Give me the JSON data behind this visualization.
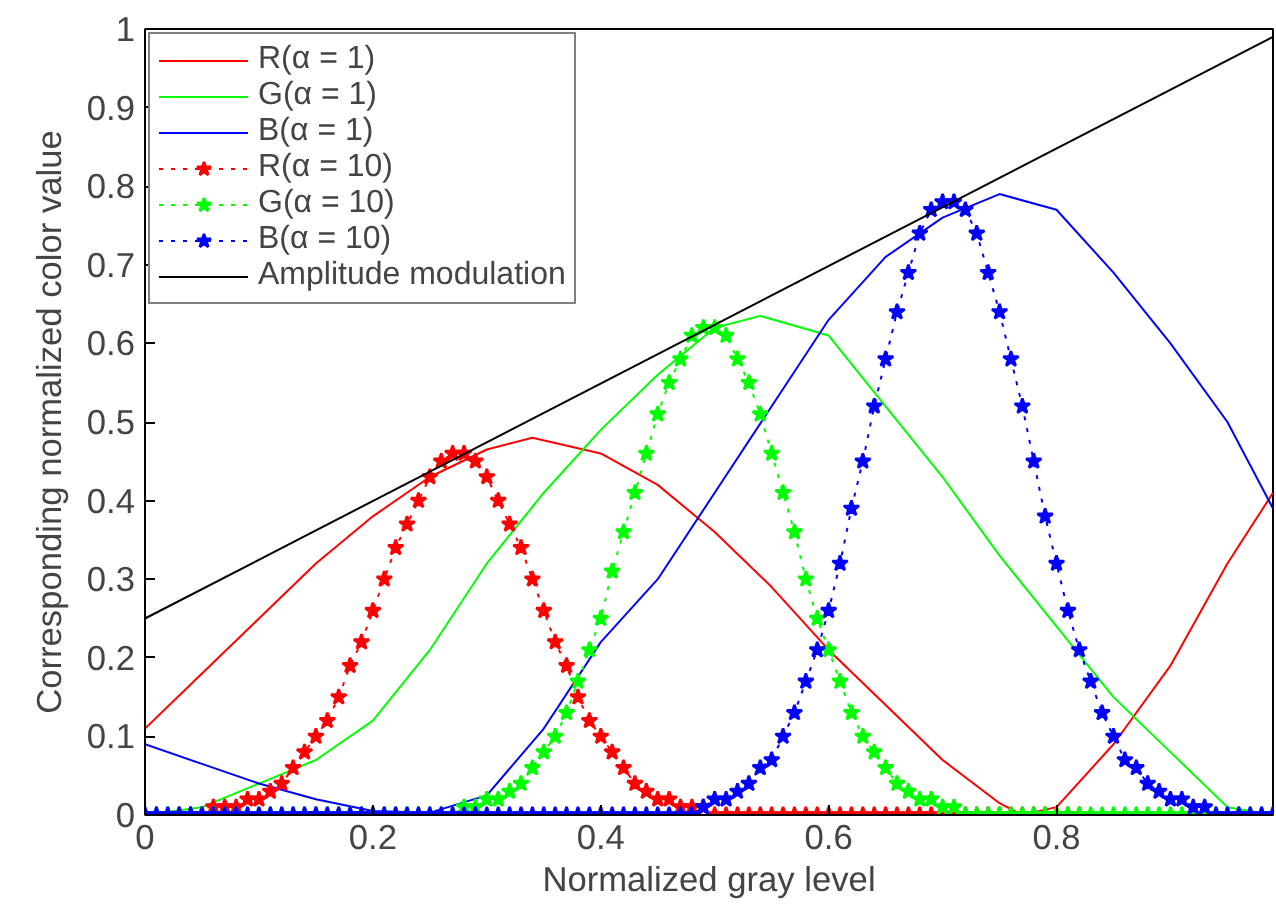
{
  "chart_data": {
    "type": "line",
    "xlabel": "Normalized gray level",
    "ylabel": "Corresponding normalized color value",
    "x": [
      0,
      0.01,
      0.02,
      0.03,
      0.04,
      0.05,
      0.06,
      0.07,
      0.08,
      0.09,
      0.1,
      0.11,
      0.12,
      0.13,
      0.14,
      0.15,
      0.16,
      0.17,
      0.18,
      0.19,
      0.2,
      0.21,
      0.22,
      0.23,
      0.24,
      0.25,
      0.26,
      0.27,
      0.28,
      0.29,
      0.3,
      0.31,
      0.32,
      0.33,
      0.34,
      0.35,
      0.36,
      0.37,
      0.38,
      0.39,
      0.4,
      0.41,
      0.42,
      0.43,
      0.44,
      0.45,
      0.46,
      0.47,
      0.48,
      0.49,
      0.5,
      0.51,
      0.52,
      0.53,
      0.54,
      0.55,
      0.56,
      0.57,
      0.58,
      0.59,
      0.6,
      0.61,
      0.62,
      0.63,
      0.64,
      0.65,
      0.66,
      0.67,
      0.68,
      0.69,
      0.7,
      0.71,
      0.72,
      0.73,
      0.74,
      0.75,
      0.76,
      0.77,
      0.78,
      0.79,
      0.8,
      0.81,
      0.82,
      0.83,
      0.84,
      0.85,
      0.86,
      0.87,
      0.88,
      0.89,
      0.9,
      0.91,
      0.92,
      0.93,
      0.94,
      0.95,
      0.96,
      0.97,
      0.98,
      0.99
    ],
    "series": [
      {
        "name": "R(α = 1)",
        "color": "#ff0000",
        "x": [
          0,
          0.05,
          0.1,
          0.15,
          0.2,
          0.25,
          0.3,
          0.34,
          0.4,
          0.45,
          0.5,
          0.55,
          0.6,
          0.65,
          0.7,
          0.75,
          0.77,
          0.8,
          0.85,
          0.9,
          0.95,
          0.99
        ],
        "values": [
          0.11,
          0.18,
          0.25,
          0.32,
          0.38,
          0.43,
          0.465,
          0.48,
          0.46,
          0.42,
          0.36,
          0.29,
          0.21,
          0.14,
          0.07,
          0.015,
          0.0,
          0.01,
          0.09,
          0.19,
          0.32,
          0.41
        ]
      },
      {
        "name": "G(α = 1)",
        "color": "#00ff00",
        "x": [
          0,
          0.05,
          0.1,
          0.15,
          0.2,
          0.25,
          0.3,
          0.35,
          0.4,
          0.45,
          0.5,
          0.54,
          0.6,
          0.65,
          0.7,
          0.75,
          0.8,
          0.85,
          0.9,
          0.95,
          0.99
        ],
        "values": [
          0.0,
          0.01,
          0.04,
          0.07,
          0.12,
          0.21,
          0.32,
          0.41,
          0.49,
          0.56,
          0.62,
          0.635,
          0.61,
          0.52,
          0.43,
          0.33,
          0.24,
          0.15,
          0.08,
          0.01,
          0.0
        ]
      },
      {
        "name": "B(α = 1)",
        "color": "#0000ff",
        "x": [
          0,
          0.05,
          0.1,
          0.15,
          0.2,
          0.25,
          0.3,
          0.35,
          0.4,
          0.45,
          0.5,
          0.55,
          0.6,
          0.65,
          0.7,
          0.75,
          0.8,
          0.85,
          0.9,
          0.95,
          0.99
        ],
        "values": [
          0.09,
          0.065,
          0.04,
          0.02,
          0.005,
          0.003,
          0.025,
          0.11,
          0.22,
          0.3,
          0.41,
          0.52,
          0.63,
          0.71,
          0.76,
          0.79,
          0.77,
          0.69,
          0.6,
          0.5,
          0.39
        ]
      },
      {
        "name": "R(α = 10)",
        "color": "#ff0000",
        "line_style": "dotted",
        "marker": "star",
        "values": [
          null,
          null,
          null,
          0,
          0,
          0,
          0.01,
          0.01,
          0.01,
          0.02,
          0.02,
          0.03,
          0.04,
          0.06,
          0.08,
          0.1,
          0.12,
          0.15,
          0.19,
          0.22,
          0.26,
          0.3,
          0.34,
          0.37,
          0.4,
          0.43,
          0.45,
          0.46,
          0.46,
          0.45,
          0.43,
          0.4,
          0.37,
          0.34,
          0.3,
          0.26,
          0.22,
          0.19,
          0.15,
          0.12,
          0.1,
          0.08,
          0.06,
          0.04,
          0.03,
          0.02,
          0.02,
          0.01,
          0.01,
          0.01,
          0,
          0,
          0,
          0,
          0,
          0,
          0,
          0,
          0,
          0,
          0,
          0,
          0,
          0,
          0,
          0,
          0,
          0,
          0,
          0,
          0,
          0,
          0,
          0,
          0,
          0,
          0,
          0,
          0,
          0,
          0,
          0,
          0,
          null,
          null,
          null,
          null,
          null,
          null,
          null,
          null,
          null,
          null,
          null,
          null,
          null,
          null,
          null,
          null,
          null
        ]
      },
      {
        "name": "G(α = 10)",
        "color": "#00ff00",
        "line_style": "dotted",
        "marker": "star",
        "values": [
          0,
          0,
          0,
          0,
          0,
          0,
          0,
          0,
          0,
          0,
          0,
          0,
          0,
          0,
          0,
          0,
          0,
          0,
          0,
          0,
          0,
          0,
          0,
          0,
          0,
          0,
          0,
          0,
          0.01,
          0.01,
          0.02,
          0.02,
          0.03,
          0.04,
          0.06,
          0.08,
          0.1,
          0.13,
          0.17,
          0.21,
          0.25,
          0.31,
          0.36,
          0.41,
          0.46,
          0.51,
          0.55,
          0.58,
          0.61,
          0.62,
          0.62,
          0.61,
          0.58,
          0.55,
          0.51,
          0.46,
          0.41,
          0.36,
          0.3,
          0.25,
          0.21,
          0.17,
          0.13,
          0.1,
          0.08,
          0.06,
          0.04,
          0.03,
          0.02,
          0.02,
          0.01,
          0.01,
          0,
          0,
          0,
          0,
          0,
          0,
          0,
          0,
          0,
          0,
          0,
          0,
          0,
          0,
          0,
          0,
          0,
          0,
          0,
          0,
          0,
          0,
          0,
          0,
          0,
          0,
          0,
          0
        ]
      },
      {
        "name": "B(α = 10)",
        "color": "#0000ff",
        "line_style": "dotted",
        "marker": "star",
        "values": [
          0,
          0,
          0,
          0,
          0,
          0,
          0,
          0,
          0,
          0,
          0,
          0,
          0,
          0,
          0,
          0,
          0,
          0,
          0,
          0,
          0,
          0,
          0,
          0,
          0,
          0,
          0,
          0,
          0,
          0,
          0,
          0,
          0,
          0,
          0,
          0,
          0,
          0,
          0,
          0,
          0,
          0,
          0,
          0,
          0,
          0,
          0,
          0,
          0,
          0.01,
          0.02,
          0.02,
          0.03,
          0.04,
          0.06,
          0.07,
          0.1,
          0.13,
          0.17,
          0.21,
          0.26,
          0.32,
          0.39,
          0.45,
          0.52,
          0.58,
          0.64,
          0.69,
          0.74,
          0.77,
          0.78,
          0.78,
          0.77,
          0.74,
          0.69,
          0.64,
          0.58,
          0.52,
          0.45,
          0.38,
          0.32,
          0.26,
          0.21,
          0.17,
          0.13,
          0.1,
          0.07,
          0.06,
          0.04,
          0.03,
          0.02,
          0.02,
          0.01,
          0.01,
          0,
          0,
          0,
          0,
          0,
          0
        ]
      },
      {
        "name": "Amplitude modulation",
        "color": "#000000",
        "x": [
          0,
          0.99
        ],
        "values": [
          0.25,
          0.99
        ]
      }
    ],
    "xlim": [
      0,
      0.99
    ],
    "ylim": [
      0,
      1
    ],
    "xticks": [
      0,
      0.2,
      0.4,
      0.6,
      0.8
    ],
    "yticks": [
      0,
      0.1,
      0.2,
      0.3,
      0.4,
      0.5,
      0.6,
      0.7,
      0.8,
      0.9,
      1
    ],
    "grid": false,
    "legend": "top left",
    "line_style": "solid",
    "marker": "none"
  }
}
